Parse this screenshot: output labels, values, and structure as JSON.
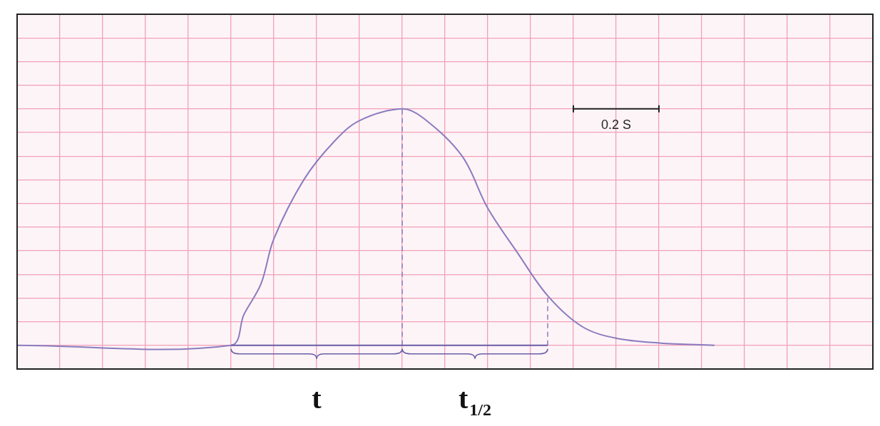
{
  "chart_data": {
    "type": "line",
    "color": "#8a7cc0",
    "grid": true,
    "tick_labels": false,
    "x": [
      -0.5,
      0,
      0.03,
      0.07,
      0.1,
      0.17,
      0.24,
      0.3,
      0.4,
      0.45,
      0.54,
      0.6,
      0.67,
      0.74,
      0.82,
      0.9,
      1.0,
      1.13
    ],
    "values": [
      0,
      0,
      0.13,
      0.26,
      0.45,
      0.7,
      0.86,
      0.95,
      1.0,
      0.96,
      0.8,
      0.58,
      0.39,
      0.21,
      0.08,
      0.03,
      0.01,
      0
    ],
    "xlim": [
      -0.5,
      1.5
    ],
    "xticks": [
      -0.5,
      -0.4,
      -0.3,
      -0.2,
      -0.1,
      0,
      0.1,
      0.2,
      0.3,
      0.4,
      0.5,
      0.6,
      0.7,
      0.8,
      0.9,
      1.0,
      1.1,
      1.2,
      1.3,
      1.4,
      1.5
    ],
    "ylim": [
      -0.1,
      1.4
    ],
    "yticks": [
      -0.1,
      0,
      0.1,
      0.2,
      0.3,
      0.4,
      0.5,
      0.6,
      0.7,
      0.8,
      0.9,
      1.0,
      1.1,
      1.2,
      1.3,
      1.4
    ],
    "guides": [
      {
        "x": 0.4,
        "y_top": 1.0
      },
      {
        "x": 0.74,
        "y_top": 0.21
      }
    ],
    "intervals": [
      {
        "label": "t",
        "start": 0,
        "end": 0.4
      },
      {
        "label": "t",
        "subscript": "1/2",
        "start": 0.4,
        "end": 0.74
      }
    ],
    "scale_bar": {
      "label": "0.2 S",
      "x_start": 0.8,
      "x_end": 1.0,
      "y": 1.0
    }
  }
}
